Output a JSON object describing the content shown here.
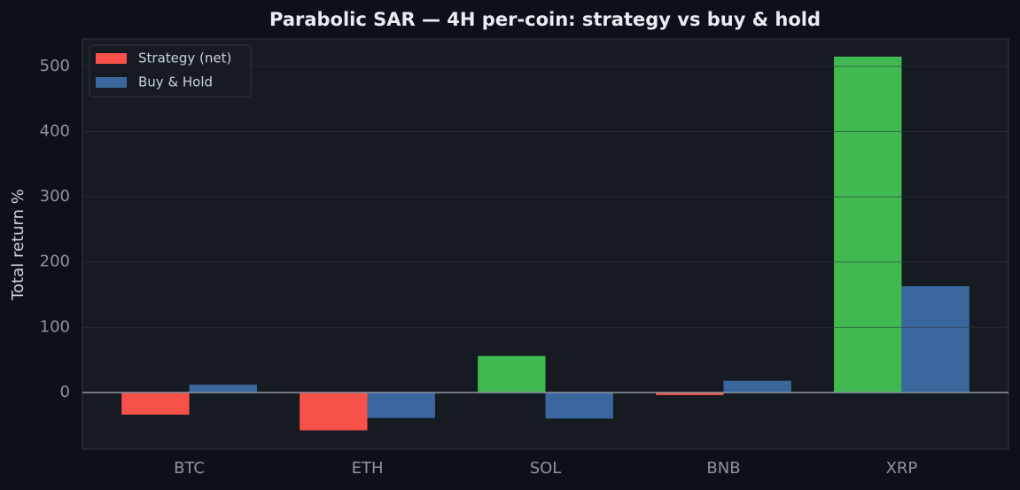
{
  "chart_data": {
    "type": "bar",
    "title": "Parabolic SAR — 4H per-coin: strategy vs buy & hold",
    "y_label": "Total return %",
    "categories": [
      "BTC",
      "ETH",
      "SOL",
      "BNB",
      "XRP"
    ],
    "series": [
      {
        "name": "Strategy (net)",
        "color": "#f85149",
        "positive_color": "#3fb950",
        "values": [
          -34,
          -58,
          56,
          -4,
          515
        ]
      },
      {
        "name": "Buy & Hold",
        "color": "#3a689e",
        "values": [
          12,
          -39,
          -40,
          18,
          163
        ]
      }
    ],
    "ylim": [
      -87,
      542
    ],
    "yticks": [
      0,
      100,
      200,
      300,
      400,
      500
    ],
    "grid": true,
    "legend": "upper-left"
  }
}
